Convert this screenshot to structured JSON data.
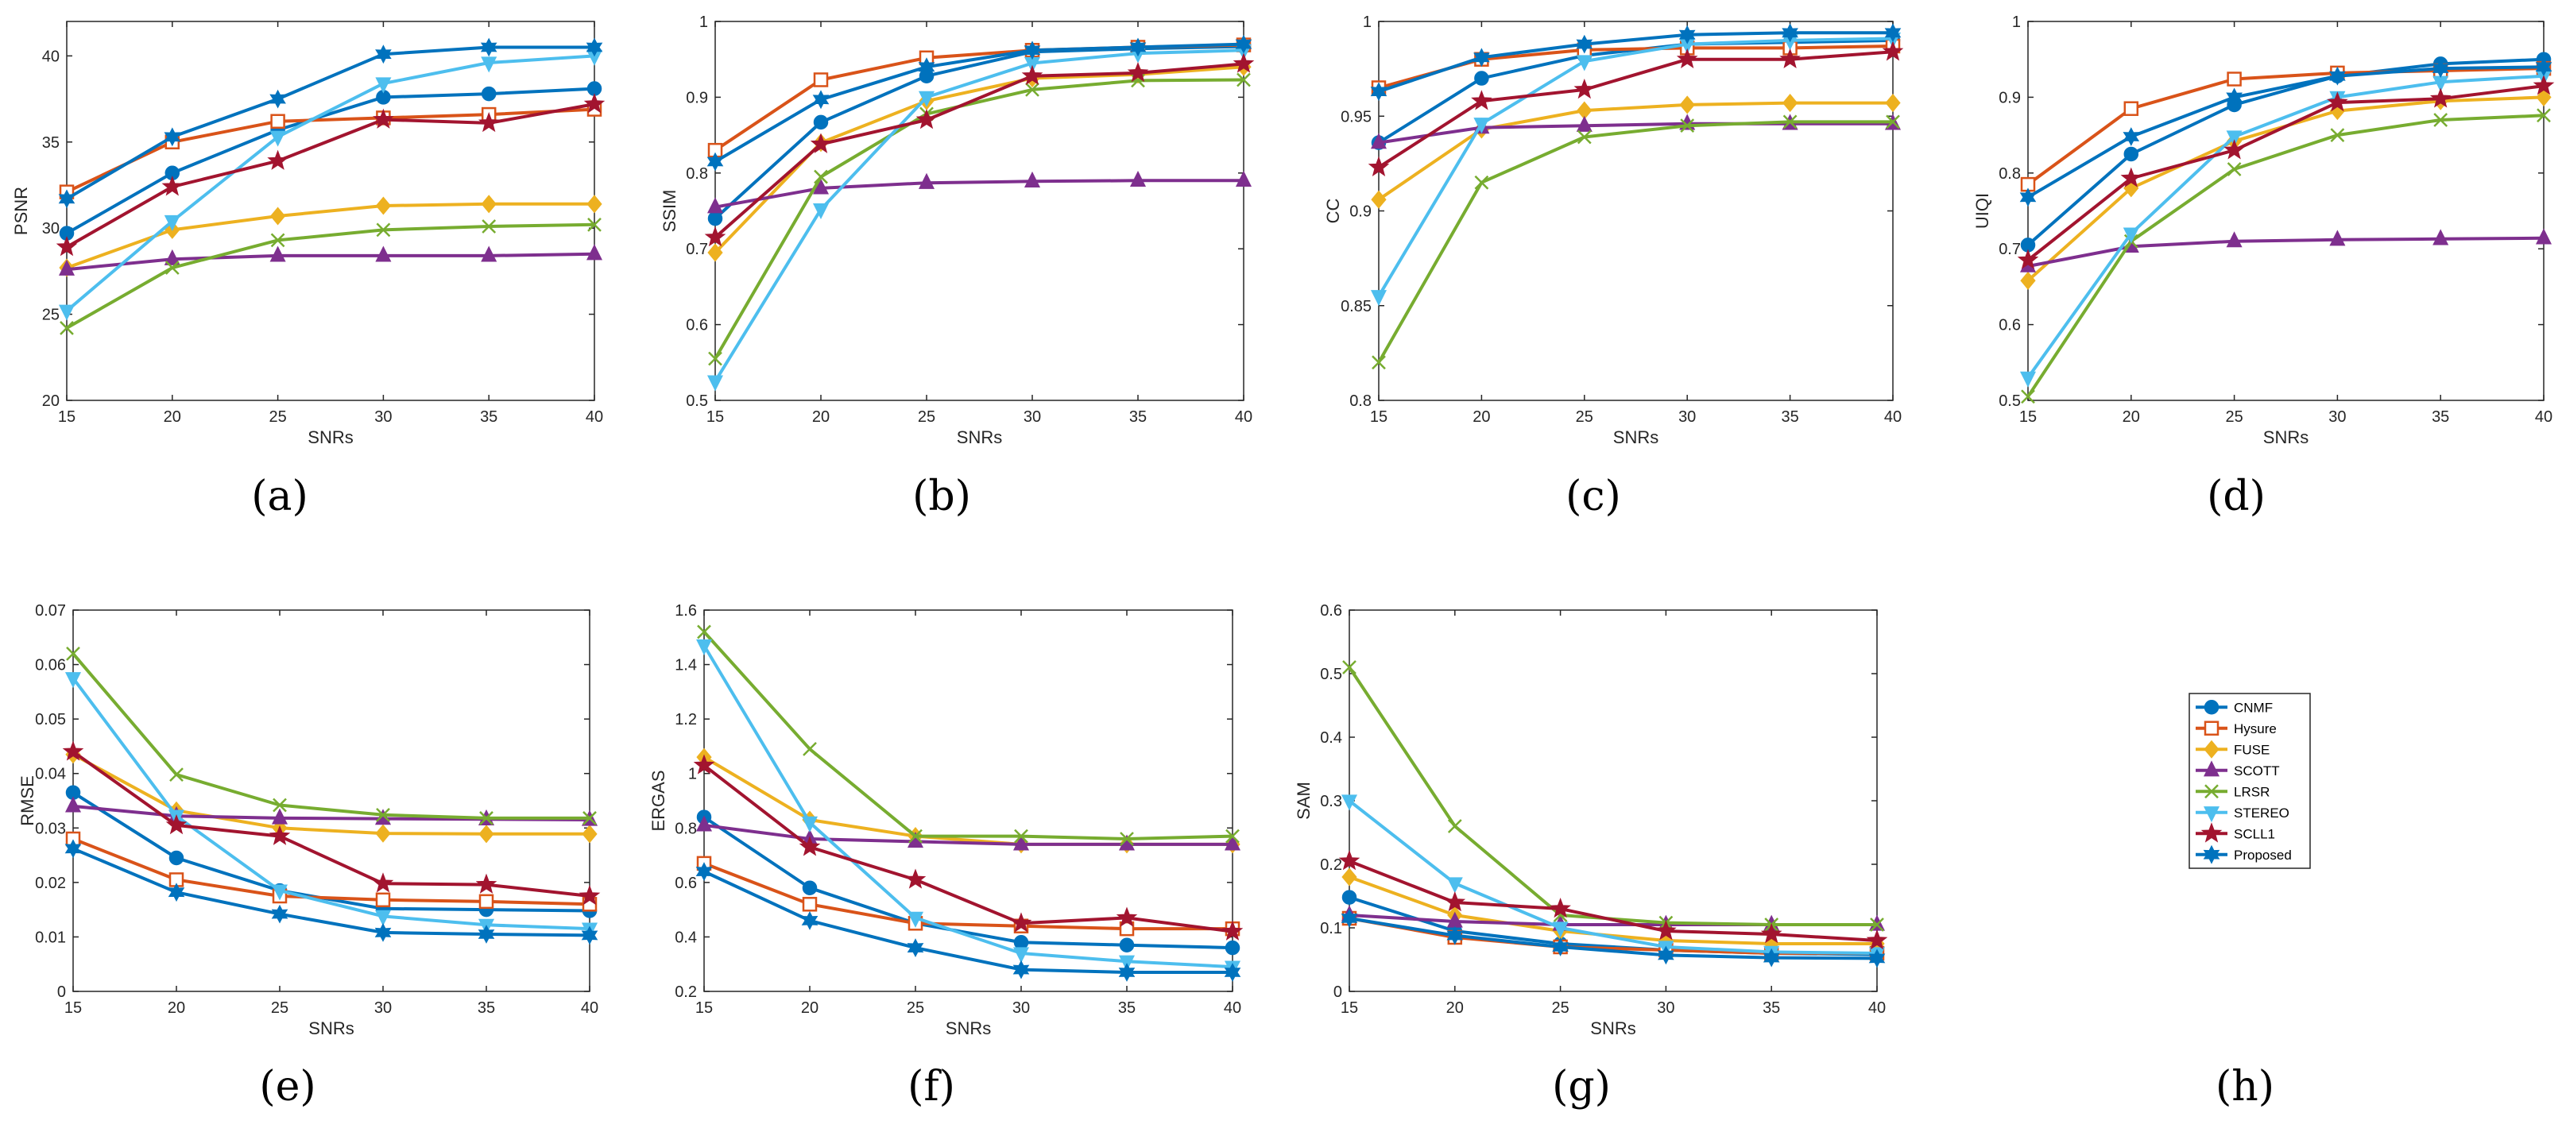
{
  "figure": {
    "panel_labels": [
      "(a)",
      "(b)",
      "(c)",
      "(d)",
      "(e)",
      "(f)",
      "(g)",
      "(h)"
    ]
  },
  "legend": {
    "entries": [
      {
        "name": "CNMF",
        "color": "#0072BD",
        "marker": "circle"
      },
      {
        "name": "Hysure",
        "color": "#D95319",
        "marker": "square"
      },
      {
        "name": "FUSE",
        "color": "#EDB120",
        "marker": "diamond"
      },
      {
        "name": "SCOTT",
        "color": "#7E2F8E",
        "marker": "triangle-up"
      },
      {
        "name": "LRSR",
        "color": "#77AC30",
        "marker": "x"
      },
      {
        "name": "STEREO",
        "color": "#4DBEEE",
        "marker": "triangle-down"
      },
      {
        "name": "SCLL1",
        "color": "#A2142F",
        "marker": "star"
      },
      {
        "name": "Proposed",
        "color": "#0072BD",
        "marker": "hexagram"
      }
    ]
  },
  "chart_data": [
    {
      "panel": "(a)",
      "type": "line",
      "xlabel": "SNRs",
      "ylabel": "PSNR",
      "x": [
        15,
        20,
        25,
        30,
        35,
        40
      ],
      "xlim": [
        15,
        40
      ],
      "ylim": [
        20,
        42
      ],
      "xticks": [
        15,
        20,
        25,
        30,
        35,
        40
      ],
      "yticks": [
        20,
        25,
        30,
        35,
        40
      ],
      "ytick_labels": [
        "20",
        "25",
        "30",
        "35",
        "40"
      ],
      "series": [
        {
          "name": "CNMF",
          "values": [
            29.7,
            33.2,
            35.7,
            37.6,
            37.8,
            38.1
          ]
        },
        {
          "name": "Hysure",
          "values": [
            32.1,
            35.0,
            36.2,
            36.4,
            36.6,
            36.9
          ]
        },
        {
          "name": "FUSE",
          "values": [
            27.7,
            29.9,
            30.7,
            31.3,
            31.4,
            31.4
          ]
        },
        {
          "name": "SCOTT",
          "values": [
            27.6,
            28.2,
            28.4,
            28.4,
            28.4,
            28.5
          ]
        },
        {
          "name": "LRSR",
          "values": [
            24.2,
            27.7,
            29.3,
            29.9,
            30.1,
            30.2
          ]
        },
        {
          "name": "STEREO",
          "values": [
            25.2,
            30.4,
            35.3,
            38.4,
            39.6,
            40.0
          ]
        },
        {
          "name": "SCLL1",
          "values": [
            28.9,
            32.4,
            33.9,
            36.3,
            36.1,
            37.2
          ]
        },
        {
          "name": "Proposed",
          "values": [
            31.7,
            35.3,
            37.5,
            40.1,
            40.5,
            40.5
          ]
        }
      ]
    },
    {
      "panel": "(b)",
      "type": "line",
      "xlabel": "SNRs",
      "ylabel": "SSIM",
      "x": [
        15,
        20,
        25,
        30,
        35,
        40
      ],
      "xlim": [
        15,
        40
      ],
      "ylim": [
        0.5,
        1.0
      ],
      "xticks": [
        15,
        20,
        25,
        30,
        35,
        40
      ],
      "yticks": [
        0.5,
        0.6,
        0.7,
        0.8,
        0.9,
        1.0
      ],
      "ytick_labels": [
        "0.5",
        "0.6",
        "0.7",
        "0.8",
        "0.9",
        "1"
      ],
      "series": [
        {
          "name": "CNMF",
          "values": [
            0.74,
            0.867,
            0.928,
            0.96,
            0.964,
            0.967
          ]
        },
        {
          "name": "Hysure",
          "values": [
            0.83,
            0.923,
            0.952,
            0.962,
            0.966,
            0.969
          ]
        },
        {
          "name": "FUSE",
          "values": [
            0.695,
            0.84,
            0.895,
            0.925,
            0.93,
            0.94
          ]
        },
        {
          "name": "SCOTT",
          "values": [
            0.755,
            0.78,
            0.787,
            0.789,
            0.79,
            0.79
          ]
        },
        {
          "name": "LRSR",
          "values": [
            0.555,
            0.795,
            0.878,
            0.91,
            0.922,
            0.923
          ]
        },
        {
          "name": "STEREO",
          "values": [
            0.525,
            0.752,
            0.9,
            0.945,
            0.958,
            0.962
          ]
        },
        {
          "name": "SCLL1",
          "values": [
            0.715,
            0.838,
            0.87,
            0.928,
            0.932,
            0.944
          ]
        },
        {
          "name": "Proposed",
          "values": [
            0.815,
            0.897,
            0.94,
            0.962,
            0.966,
            0.97
          ]
        }
      ]
    },
    {
      "panel": "(c)",
      "type": "line",
      "xlabel": "SNRs",
      "ylabel": "CC",
      "x": [
        15,
        20,
        25,
        30,
        35,
        40
      ],
      "xlim": [
        15,
        40
      ],
      "ylim": [
        0.8,
        1.0
      ],
      "xticks": [
        15,
        20,
        25,
        30,
        35,
        40
      ],
      "yticks": [
        0.8,
        0.85,
        0.9,
        0.95,
        1.0
      ],
      "ytick_labels": [
        "0.8",
        "0.85",
        "0.9",
        "0.95",
        "1"
      ],
      "series": [
        {
          "name": "CNMF",
          "values": [
            0.936,
            0.97,
            0.982,
            0.988,
            0.989,
            0.99
          ]
        },
        {
          "name": "Hysure",
          "values": [
            0.965,
            0.98,
            0.985,
            0.986,
            0.986,
            0.987
          ]
        },
        {
          "name": "FUSE",
          "values": [
            0.906,
            0.943,
            0.953,
            0.956,
            0.957,
            0.957
          ]
        },
        {
          "name": "SCOTT",
          "values": [
            0.936,
            0.944,
            0.945,
            0.946,
            0.946,
            0.946
          ]
        },
        {
          "name": "LRSR",
          "values": [
            0.82,
            0.915,
            0.939,
            0.945,
            0.947,
            0.947
          ]
        },
        {
          "name": "STEREO",
          "values": [
            0.855,
            0.946,
            0.979,
            0.988,
            0.99,
            0.991
          ]
        },
        {
          "name": "SCLL1",
          "values": [
            0.923,
            0.958,
            0.964,
            0.98,
            0.98,
            0.984
          ]
        },
        {
          "name": "Proposed",
          "values": [
            0.963,
            0.981,
            0.988,
            0.993,
            0.994,
            0.994
          ]
        }
      ]
    },
    {
      "panel": "(d)",
      "type": "line",
      "xlabel": "SNRs",
      "ylabel": "UIQI",
      "x": [
        15,
        20,
        25,
        30,
        35,
        40
      ],
      "xlim": [
        15,
        40
      ],
      "ylim": [
        0.5,
        1.0
      ],
      "xticks": [
        15,
        20,
        25,
        30,
        35,
        40
      ],
      "yticks": [
        0.5,
        0.6,
        0.7,
        0.8,
        0.9,
        1.0
      ],
      "ytick_labels": [
        "0.5",
        "0.6",
        "0.7",
        "0.8",
        "0.9",
        "1"
      ],
      "series": [
        {
          "name": "CNMF",
          "values": [
            0.705,
            0.825,
            0.89,
            0.928,
            0.944,
            0.95
          ]
        },
        {
          "name": "Hysure",
          "values": [
            0.785,
            0.885,
            0.924,
            0.932,
            0.935,
            0.938
          ]
        },
        {
          "name": "FUSE",
          "values": [
            0.658,
            0.78,
            0.842,
            0.882,
            0.895,
            0.9
          ]
        },
        {
          "name": "SCOTT",
          "values": [
            0.677,
            0.703,
            0.71,
            0.712,
            0.713,
            0.714
          ]
        },
        {
          "name": "LRSR",
          "values": [
            0.505,
            0.71,
            0.805,
            0.85,
            0.87,
            0.876
          ]
        },
        {
          "name": "STEREO",
          "values": [
            0.53,
            0.72,
            0.848,
            0.9,
            0.92,
            0.928
          ]
        },
        {
          "name": "SCLL1",
          "values": [
            0.685,
            0.793,
            0.83,
            0.893,
            0.898,
            0.915
          ]
        },
        {
          "name": "Proposed",
          "values": [
            0.768,
            0.848,
            0.9,
            0.928,
            0.938,
            0.94
          ]
        }
      ]
    },
    {
      "panel": "(e)",
      "type": "line",
      "xlabel": "SNRs",
      "ylabel": "RMSE",
      "x": [
        15,
        20,
        25,
        30,
        35,
        40
      ],
      "xlim": [
        15,
        40
      ],
      "ylim": [
        0,
        0.07
      ],
      "xticks": [
        15,
        20,
        25,
        30,
        35,
        40
      ],
      "yticks": [
        0,
        0.01,
        0.02,
        0.03,
        0.04,
        0.05,
        0.06,
        0.07
      ],
      "ytick_labels": [
        "0",
        "0.01",
        "0.02",
        "0.03",
        "0.04",
        "0.05",
        "0.06",
        "0.07"
      ],
      "series": [
        {
          "name": "CNMF",
          "values": [
            0.0365,
            0.0245,
            0.0185,
            0.0152,
            0.015,
            0.0148
          ]
        },
        {
          "name": "Hysure",
          "values": [
            0.028,
            0.0205,
            0.0175,
            0.0168,
            0.0165,
            0.016
          ]
        },
        {
          "name": "FUSE",
          "values": [
            0.0435,
            0.0332,
            0.03,
            0.029,
            0.0289,
            0.0289
          ]
        },
        {
          "name": "SCOTT",
          "values": [
            0.034,
            0.0322,
            0.0318,
            0.0317,
            0.0316,
            0.0315
          ]
        },
        {
          "name": "LRSR",
          "values": [
            0.062,
            0.0398,
            0.0342,
            0.0324,
            0.0318,
            0.0318
          ]
        },
        {
          "name": "STEREO",
          "values": [
            0.0575,
            0.0322,
            0.0185,
            0.0138,
            0.0122,
            0.0115
          ]
        },
        {
          "name": "SCLL1",
          "values": [
            0.044,
            0.0305,
            0.0285,
            0.0198,
            0.0196,
            0.0175
          ]
        },
        {
          "name": "Proposed",
          "values": [
            0.0262,
            0.0182,
            0.0142,
            0.0108,
            0.0105,
            0.0103
          ]
        }
      ]
    },
    {
      "panel": "(f)",
      "type": "line",
      "xlabel": "SNRs",
      "ylabel": "ERGAS",
      "x": [
        15,
        20,
        25,
        30,
        35,
        40
      ],
      "xlim": [
        15,
        40
      ],
      "ylim": [
        0.2,
        1.6
      ],
      "xticks": [
        15,
        20,
        25,
        30,
        35,
        40
      ],
      "yticks": [
        0.2,
        0.4,
        0.6,
        0.8,
        1.0,
        1.2,
        1.4,
        1.6
      ],
      "ytick_labels": [
        "0.2",
        "0.4",
        "0.6",
        "0.8",
        "1",
        "1.2",
        "1.4",
        "1.6"
      ],
      "series": [
        {
          "name": "CNMF",
          "values": [
            0.84,
            0.58,
            0.45,
            0.38,
            0.37,
            0.36
          ]
        },
        {
          "name": "Hysure",
          "values": [
            0.67,
            0.52,
            0.45,
            0.44,
            0.43,
            0.43
          ]
        },
        {
          "name": "FUSE",
          "values": [
            1.06,
            0.83,
            0.77,
            0.74,
            0.74,
            0.74
          ]
        },
        {
          "name": "SCOTT",
          "values": [
            0.81,
            0.76,
            0.75,
            0.74,
            0.74,
            0.74
          ]
        },
        {
          "name": "LRSR",
          "values": [
            1.52,
            1.09,
            0.77,
            0.77,
            0.76,
            0.77
          ]
        },
        {
          "name": "STEREO",
          "values": [
            1.47,
            0.82,
            0.47,
            0.34,
            0.31,
            0.29
          ]
        },
        {
          "name": "SCLL1",
          "values": [
            1.03,
            0.73,
            0.61,
            0.45,
            0.47,
            0.42
          ]
        },
        {
          "name": "Proposed",
          "values": [
            0.64,
            0.46,
            0.36,
            0.28,
            0.27,
            0.27
          ]
        }
      ]
    },
    {
      "panel": "(g)",
      "type": "line",
      "xlabel": "SNRs",
      "ylabel": "SAM",
      "x": [
        15,
        20,
        25,
        30,
        35,
        40
      ],
      "xlim": [
        15,
        40
      ],
      "ylim": [
        0,
        0.6
      ],
      "xticks": [
        15,
        20,
        25,
        30,
        35,
        40
      ],
      "yticks": [
        0,
        0.1,
        0.2,
        0.3,
        0.4,
        0.5,
        0.6
      ],
      "ytick_labels": [
        "0",
        "0.1",
        "0.2",
        "0.3",
        "0.4",
        "0.5",
        "0.6"
      ],
      "series": [
        {
          "name": "CNMF",
          "values": [
            0.148,
            0.095,
            0.075,
            0.065,
            0.06,
            0.058
          ]
        },
        {
          "name": "Hysure",
          "values": [
            0.115,
            0.085,
            0.07,
            0.065,
            0.06,
            0.06
          ]
        },
        {
          "name": "FUSE",
          "values": [
            0.18,
            0.12,
            0.095,
            0.08,
            0.075,
            0.075
          ]
        },
        {
          "name": "SCOTT",
          "values": [
            0.12,
            0.11,
            0.105,
            0.105,
            0.105,
            0.105
          ]
        },
        {
          "name": "LRSR",
          "values": [
            0.51,
            0.26,
            0.12,
            0.108,
            0.105,
            0.105
          ]
        },
        {
          "name": "STEREO",
          "values": [
            0.3,
            0.17,
            0.1,
            0.07,
            0.062,
            0.06
          ]
        },
        {
          "name": "SCLL1",
          "values": [
            0.205,
            0.14,
            0.13,
            0.095,
            0.09,
            0.08
          ]
        },
        {
          "name": "Proposed",
          "values": [
            0.115,
            0.088,
            0.07,
            0.057,
            0.053,
            0.052
          ]
        }
      ]
    }
  ]
}
